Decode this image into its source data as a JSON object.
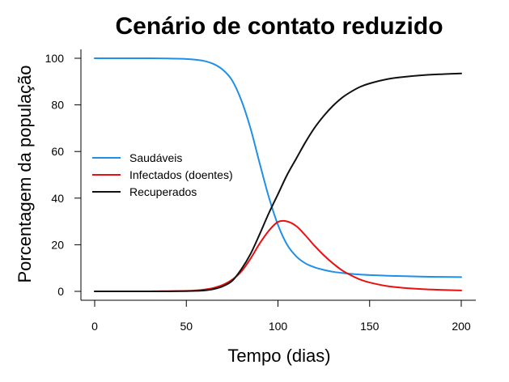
{
  "chart_data": {
    "type": "line",
    "title": "Cenário de contato reduzido",
    "xlabel": "Tempo (dias)",
    "ylabel": "Porcentagem da população",
    "xlim": [
      0,
      200
    ],
    "ylim": [
      0,
      100
    ],
    "xticks": [
      0,
      50,
      100,
      150,
      200
    ],
    "yticks": [
      0,
      20,
      40,
      60,
      80,
      100
    ],
    "grid": false,
    "legend_position": "center-left",
    "x": [
      0,
      10,
      20,
      30,
      40,
      50,
      55,
      60,
      65,
      70,
      75,
      80,
      85,
      90,
      95,
      100,
      105,
      110,
      115,
      120,
      125,
      130,
      135,
      140,
      145,
      150,
      160,
      170,
      180,
      190,
      200
    ],
    "series": [
      {
        "name": "Saudáveis",
        "color": "#1f8fe8",
        "values": [
          100,
          100,
          100,
          100,
          99.9,
          99.7,
          99.4,
          98.8,
          97.5,
          95.0,
          90.5,
          82.0,
          70.0,
          55.0,
          40.5,
          28.5,
          20.0,
          15.0,
          12.0,
          10.3,
          9.2,
          8.4,
          7.9,
          7.5,
          7.2,
          7.0,
          6.7,
          6.5,
          6.3,
          6.2,
          6.1
        ]
      },
      {
        "name": "Infectados (doentes)",
        "color": "#e81010",
        "values": [
          0,
          0,
          0,
          0,
          0.1,
          0.2,
          0.4,
          0.8,
          1.5,
          2.8,
          5.0,
          8.5,
          14.0,
          20.5,
          26.0,
          29.8,
          30.0,
          28.0,
          24.0,
          19.5,
          15.5,
          12.0,
          9.0,
          6.8,
          5.0,
          3.8,
          2.2,
          1.4,
          0.9,
          0.6,
          0.4
        ]
      },
      {
        "name": "Recuperados",
        "color": "#111111",
        "values": [
          0,
          0,
          0,
          0,
          0,
          0.1,
          0.2,
          0.4,
          1.0,
          2.2,
          4.5,
          9.5,
          16.0,
          24.5,
          33.5,
          41.7,
          50.0,
          57.0,
          64.0,
          70.2,
          75.3,
          79.6,
          83.1,
          85.7,
          87.8,
          89.2,
          91.1,
          92.1,
          92.8,
          93.2,
          93.5
        ]
      }
    ]
  }
}
